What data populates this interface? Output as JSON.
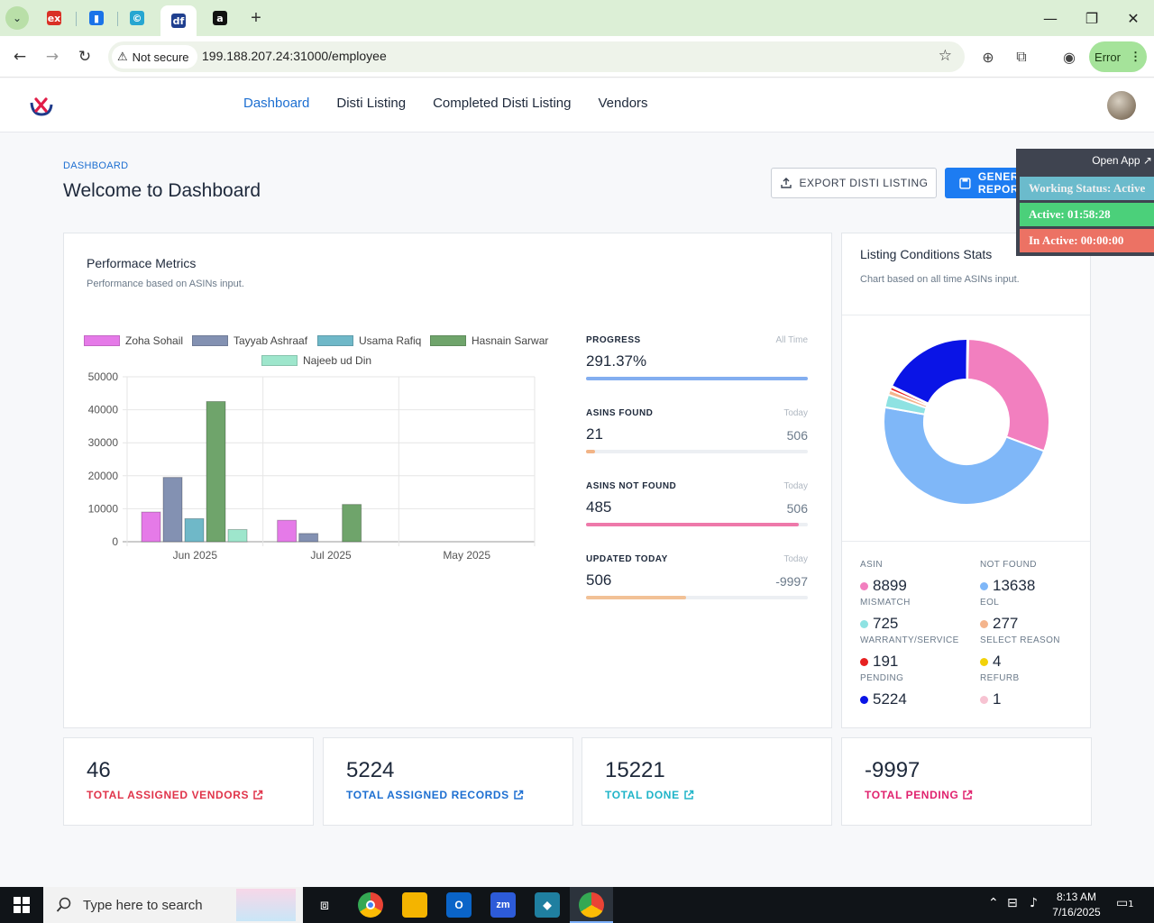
{
  "browser": {
    "tabs": [
      {
        "icon": "ex",
        "color": "#d93025"
      },
      {
        "icon": "▮",
        "color": "#1a73e8"
      },
      {
        "icon": "©",
        "color": "#26a6d1"
      },
      {
        "icon": "df",
        "color": "#1f3f8f"
      },
      {
        "icon": "a",
        "color": "#111111"
      }
    ],
    "security_label": "Not secure",
    "url": "199.188.207.24:31000/employee",
    "profile_status": "Error"
  },
  "nav": {
    "items": [
      "Dashboard",
      "Disti Listing",
      "Completed Disti Listing",
      "Vendors"
    ],
    "active": "Dashboard"
  },
  "page": {
    "breadcrumb": "DASHBOARD",
    "title": "Welcome to Dashboard",
    "export_label": "EXPORT DISTI LISTING",
    "generate_label": "GENERATE REPORT"
  },
  "overlay": {
    "open_app": "Open App ↗",
    "working_status": "Working Status: Active",
    "active": "Active: 01:58:28",
    "inactive": "In Active: 00:00:00"
  },
  "performance": {
    "title": "Performace Metrics",
    "subtitle": "Performance based on ASINs input."
  },
  "chart_data": {
    "type": "bar",
    "categories": [
      "Jun 2025",
      "Jul 2025",
      "May 2025"
    ],
    "ylim": [
      0,
      50000
    ],
    "yticks": [
      "50000",
      "40000",
      "30000",
      "20000",
      "10000",
      "0"
    ],
    "legend_position": "top",
    "series": [
      {
        "name": "Zoha Sohail",
        "color": "#e57ae8",
        "values": [
          9000,
          6500,
          0
        ]
      },
      {
        "name": "Tayyab Ashraaf",
        "color": "#8391b2",
        "values": [
          19500,
          2500,
          0
        ]
      },
      {
        "name": "Usama Rafiq",
        "color": "#6fb8c8",
        "values": [
          7000,
          0,
          0
        ]
      },
      {
        "name": "Hasnain Sarwar",
        "color": "#6fa46b",
        "values": [
          42500,
          11300,
          0
        ]
      },
      {
        "name": "Najeeb ud Din",
        "color": "#9ee6cc",
        "values": [
          3700,
          0,
          0
        ]
      }
    ]
  },
  "metrics": [
    {
      "label": "PROGRESS",
      "tag": "All Time",
      "value": "291.37%",
      "total": "",
      "fill": 1.0,
      "color": "#83aef0"
    },
    {
      "label": "ASINS FOUND",
      "tag": "Today",
      "value": "21",
      "total": "506",
      "fill": 0.04,
      "color": "#f2b486"
    },
    {
      "label": "ASINS NOT FOUND",
      "tag": "Today",
      "value": "485",
      "total": "506",
      "fill": 0.96,
      "color": "#ee79aa"
    },
    {
      "label": "UPDATED TODAY",
      "tag": "Today",
      "value": "506",
      "total": "-9997",
      "fill": 0.45,
      "color": "#f2c196"
    }
  ],
  "listing": {
    "title": "Listing Conditions Stats",
    "subtitle": "Chart based on all time ASINs input.",
    "donut": [
      {
        "value": 8899,
        "color": "#f27fbf"
      },
      {
        "value": 13638,
        "color": "#7fb7f8"
      },
      {
        "value": 725,
        "color": "#8ee2e2"
      },
      {
        "value": 277,
        "color": "#f4b48c"
      },
      {
        "value": 191,
        "color": "#e62020"
      },
      {
        "value": 4,
        "color": "#f2d20a"
      },
      {
        "value": 5224,
        "color": "#0a14e6"
      },
      {
        "value": 1,
        "color": "#f7c3d2"
      }
    ],
    "stats": [
      {
        "label": "ASIN",
        "value": "8899",
        "color": "#f27fbf"
      },
      {
        "label": "NOT FOUND",
        "value": "13638",
        "color": "#7fb7f8"
      },
      {
        "label": "MISMATCH",
        "value": "725",
        "color": "#8ee2e2"
      },
      {
        "label": "EOL",
        "value": "277",
        "color": "#f4b48c"
      },
      {
        "label": "WARRANTY/SERVICE",
        "value": "191",
        "color": "#e62020"
      },
      {
        "label": "SELECT REASON",
        "value": "4",
        "color": "#f2d20a"
      },
      {
        "label": "PENDING",
        "value": "5224",
        "color": "#0a14e6"
      },
      {
        "label": "REFURB",
        "value": "1",
        "color": "#f7c3d2"
      }
    ]
  },
  "kpis": [
    {
      "value": "46",
      "label": "TOTAL ASSIGNED VENDORS",
      "color": "#e0344a"
    },
    {
      "value": "5224",
      "label": "TOTAL ASSIGNED RECORDS",
      "color": "#1d6fd1"
    },
    {
      "value": "15221",
      "label": "TOTAL DONE",
      "color": "#1fb4c8"
    },
    {
      "value": "-9997",
      "label": "TOTAL PENDING",
      "color": "#e0226e"
    }
  ],
  "taskbar": {
    "search_placeholder": "Type here to search",
    "time": "8:13 AM",
    "date": "7/16/2025",
    "notifications": "1"
  }
}
